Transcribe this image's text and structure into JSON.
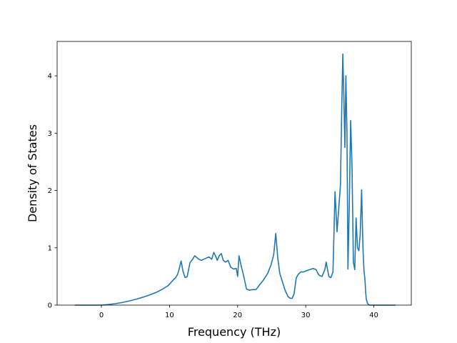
{
  "chart_data": {
    "type": "line",
    "title": "",
    "xlabel": "Frequency (THz)",
    "ylabel": "Density of States",
    "xlim": [
      -6.5,
      45.5
    ],
    "ylim": [
      0,
      4.6
    ],
    "xticks": [
      0,
      10,
      20,
      30,
      40
    ],
    "yticks": [
      0,
      1,
      2,
      3,
      4
    ],
    "grid": false,
    "legend": "none",
    "series": [
      {
        "color": "#1f77b4",
        "x": [
          -3.9,
          -3.0,
          -2.0,
          -1.0,
          0.0,
          1.0,
          2.0,
          3.0,
          4.0,
          5.0,
          6.0,
          7.0,
          8.0,
          9.0,
          9.8,
          10.4,
          10.9,
          11.2,
          11.4,
          11.7,
          12.0,
          12.3,
          12.6,
          13.0,
          13.4,
          13.7,
          14.0,
          14.3,
          14.7,
          15.0,
          15.4,
          15.8,
          16.2,
          16.5,
          16.8,
          17.0,
          17.3,
          17.6,
          17.9,
          18.2,
          18.6,
          19.0,
          19.4,
          19.8,
          20.0,
          20.2,
          20.5,
          20.9,
          21.3,
          21.7,
          22.2,
          22.7,
          23.2,
          23.8,
          24.4,
          24.9,
          25.3,
          25.6,
          25.9,
          26.2,
          26.6,
          27.0,
          27.4,
          27.7,
          28.0,
          28.3,
          28.6,
          28.9,
          29.3,
          29.7,
          30.1,
          30.6,
          31.1,
          31.5,
          31.8,
          32.0,
          32.4,
          32.8,
          33.0,
          33.2,
          33.4,
          33.7,
          34.0,
          34.3,
          34.6,
          34.8,
          35.1,
          35.3,
          35.45,
          35.6,
          35.75,
          35.9,
          36.05,
          36.2,
          36.4,
          36.6,
          36.8,
          37.0,
          37.2,
          37.4,
          37.6,
          37.8,
          38.0,
          38.2,
          38.4,
          38.55,
          38.7,
          38.8,
          38.9,
          39.05,
          39.2,
          39.4,
          39.7,
          40.2,
          41.0,
          42.0,
          43.2
        ],
        "values": [
          0,
          0,
          0,
          0,
          0,
          0.01,
          0.025,
          0.045,
          0.07,
          0.1,
          0.135,
          0.175,
          0.22,
          0.28,
          0.34,
          0.42,
          0.48,
          0.54,
          0.62,
          0.77,
          0.58,
          0.48,
          0.5,
          0.74,
          0.8,
          0.86,
          0.83,
          0.8,
          0.78,
          0.8,
          0.82,
          0.84,
          0.8,
          0.92,
          0.85,
          0.78,
          0.86,
          0.9,
          0.78,
          0.75,
          0.78,
          0.66,
          0.63,
          0.64,
          0.5,
          0.86,
          0.7,
          0.5,
          0.28,
          0.26,
          0.27,
          0.27,
          0.35,
          0.44,
          0.55,
          0.7,
          0.88,
          1.25,
          0.82,
          0.55,
          0.4,
          0.25,
          0.15,
          0.12,
          0.12,
          0.2,
          0.47,
          0.54,
          0.58,
          0.58,
          0.6,
          0.62,
          0.64,
          0.62,
          0.55,
          0.52,
          0.5,
          0.62,
          0.75,
          0.62,
          0.5,
          0.48,
          0.58,
          1.98,
          1.28,
          1.6,
          2.1,
          3.5,
          4.38,
          3.6,
          2.75,
          4.0,
          3.0,
          0.63,
          1.8,
          3.22,
          2.4,
          0.75,
          0.62,
          1.52,
          1.0,
          0.95,
          1.25,
          2.01,
          1.0,
          0.6,
          0.45,
          0.22,
          0.1,
          0.04,
          0.01,
          0,
          0,
          0,
          0,
          0,
          0
        ]
      }
    ]
  }
}
